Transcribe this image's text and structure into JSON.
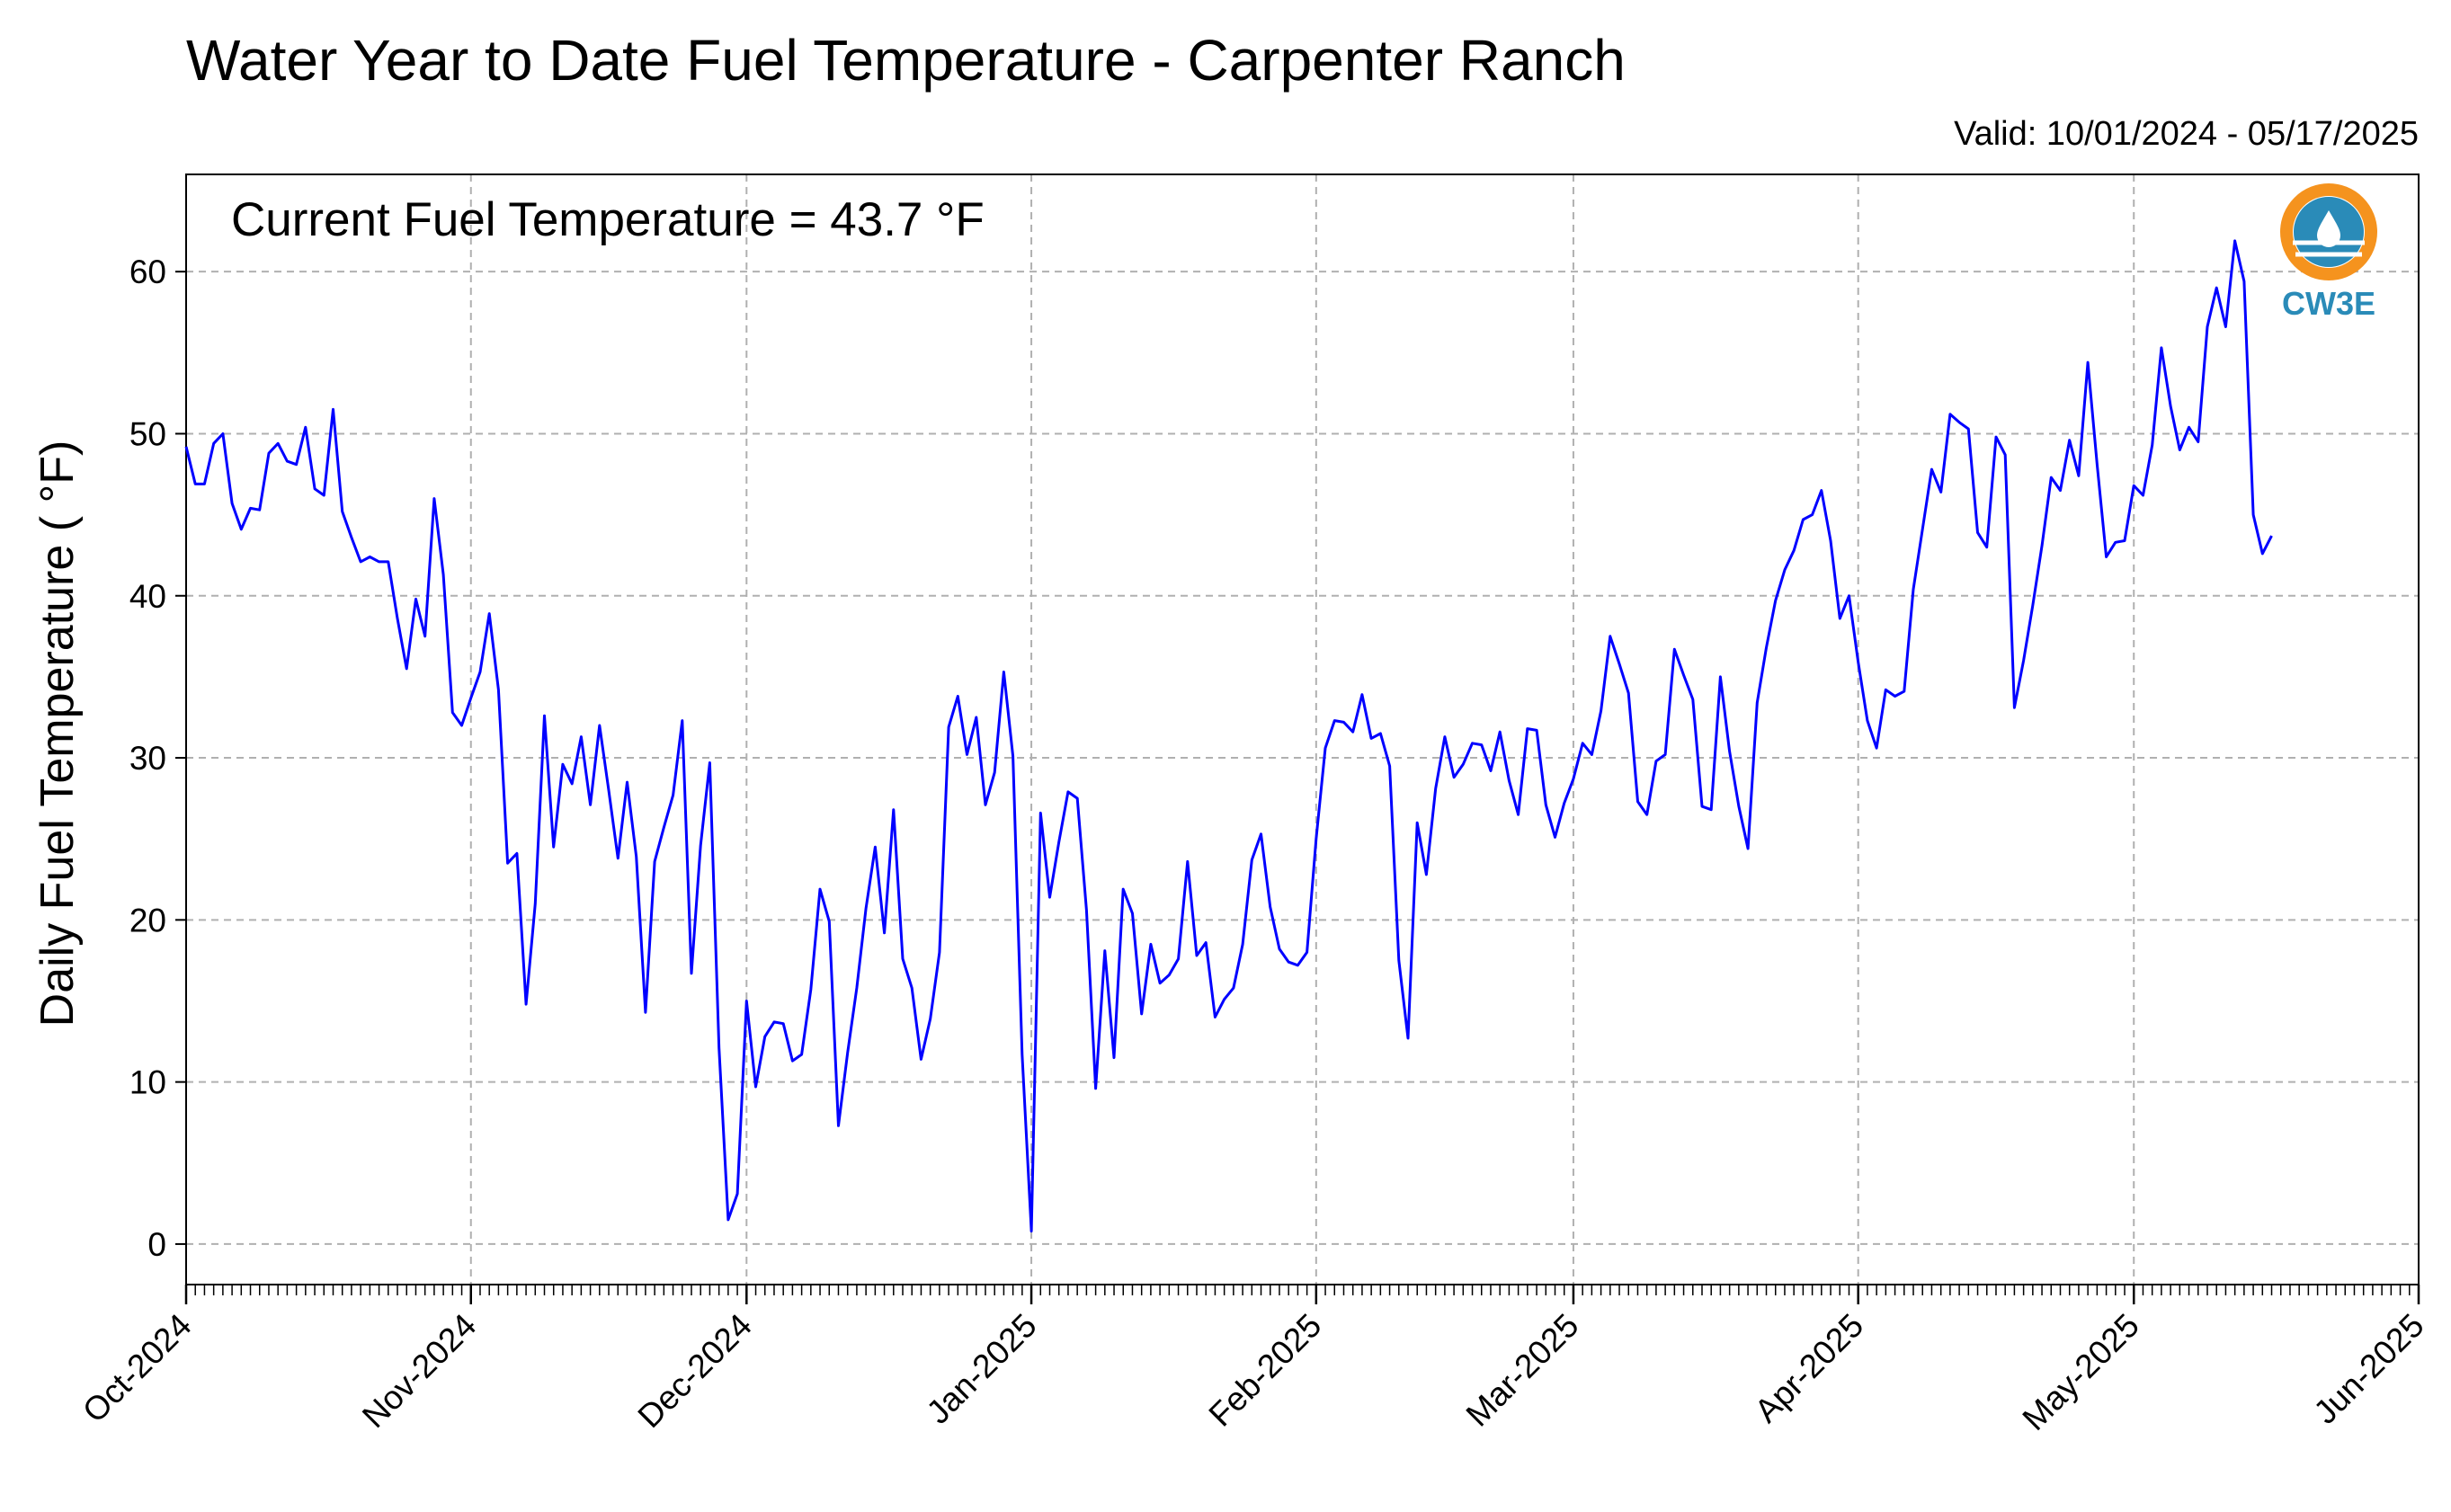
{
  "page": {
    "title": "Water Year to Date Fuel Temperature - Carpenter Ranch",
    "valid_text": "Valid: 10/01/2024 - 05/17/2025",
    "annotation": "Current Fuel Temperature = 43.7 °F",
    "logo_text": "CW3E"
  },
  "colors": {
    "line": "#0000ff",
    "grid": "#b0b0b0",
    "logo_orange": "#f5931e",
    "logo_blue": "#2a8bb8"
  },
  "chart_data": {
    "type": "line",
    "title": "Water Year to Date Fuel Temperature - Carpenter Ranch",
    "subtitle": "Valid: 10/01/2024 - 05/17/2025",
    "ylabel": "Daily Fuel Temperature ( °F)",
    "xlabel": "",
    "ylim": [
      -2.5,
      66
    ],
    "xlim": [
      "2024-10-01",
      "2025-06-01"
    ],
    "yticks": [
      0,
      10,
      20,
      30,
      40,
      50,
      60
    ],
    "ytick_labels": [
      "0",
      "10",
      "20",
      "30",
      "40",
      "50",
      "60"
    ],
    "xticks": [
      "2024-10-01",
      "2024-11-01",
      "2024-12-01",
      "2025-01-01",
      "2025-02-01",
      "2025-03-01",
      "2025-04-01",
      "2025-05-01",
      "2025-06-01"
    ],
    "xtick_labels": [
      "Oct-2024",
      "Nov-2024",
      "Dec-2024",
      "Jan-2025",
      "Feb-2025",
      "Mar-2025",
      "Apr-2025",
      "May-2025",
      "Jun-2025"
    ],
    "grid": true,
    "start_date": "2024-10-01",
    "series": [
      {
        "values": [
          49.2,
          46.9,
          46.9,
          49.4,
          50.0,
          45.7,
          44.1,
          45.4,
          45.3,
          48.8,
          49.4,
          48.3,
          48.1,
          50.4,
          46.6,
          46.2,
          51.5,
          45.2,
          43.6,
          42.1,
          42.4,
          42.1,
          42.1,
          38.6,
          35.5,
          39.8,
          37.5,
          46.0,
          41.3,
          32.8,
          32.0,
          33.7,
          35.3,
          38.9,
          34.2,
          23.5,
          24.1,
          14.8,
          21.0,
          32.6,
          24.5,
          29.6,
          28.4,
          31.3,
          27.1,
          32.0,
          28.0,
          23.8,
          28.5,
          23.9,
          14.3,
          23.6,
          25.7,
          27.7,
          32.3,
          16.7,
          24.6,
          29.7,
          12.1,
          1.5,
          3.1,
          15.0,
          9.7,
          12.8,
          13.7,
          13.6,
          11.3,
          11.7,
          15.7,
          21.9,
          19.9,
          7.3,
          11.8,
          15.8,
          20.7,
          24.5,
          19.2,
          26.8,
          17.6,
          15.8,
          11.4,
          13.9,
          18.0,
          31.9,
          33.8,
          30.2,
          32.5,
          27.1,
          29.1,
          35.3,
          30.1,
          11.7,
          0.8,
          26.6,
          21.4,
          24.8,
          27.9,
          27.5,
          20.6,
          9.6,
          18.1,
          11.5,
          21.9,
          20.4,
          14.2,
          18.5,
          16.1,
          16.6,
          17.6,
          23.6,
          17.8,
          18.6,
          14.0,
          15.1,
          15.8,
          18.5,
          23.7,
          25.3,
          20.8,
          18.2,
          17.4,
          17.2,
          18.0,
          25.0,
          30.6,
          32.3,
          32.2,
          31.6,
          33.9,
          31.2,
          31.5,
          29.5,
          17.5,
          12.7,
          26.0,
          22.8,
          28.1,
          31.3,
          28.8,
          29.6,
          30.9,
          30.8,
          29.2,
          31.6,
          28.6,
          26.5,
          31.8,
          31.7,
          27.1,
          25.1,
          27.2,
          28.7,
          30.9,
          30.2,
          32.9,
          37.5,
          35.8,
          34.0,
          27.3,
          26.5,
          29.8,
          30.2,
          36.7,
          35.1,
          33.6,
          27.0,
          26.8,
          35.0,
          30.4,
          27.0,
          24.4,
          33.4,
          36.8,
          39.7,
          41.6,
          42.8,
          44.7,
          45.0,
          46.5,
          43.4,
          38.6,
          40.0,
          35.9,
          32.3,
          30.6,
          34.2,
          33.8,
          34.1,
          40.4,
          44.1,
          47.8,
          46.4,
          51.2,
          50.7,
          50.3,
          43.9,
          43.0,
          49.8,
          48.7,
          33.1,
          36.0,
          39.4,
          43.1,
          47.3,
          46.5,
          49.6,
          47.4,
          54.4,
          48.1,
          42.4,
          43.3,
          43.4,
          46.8,
          46.2,
          49.3,
          55.3,
          51.7,
          49.0,
          50.4,
          49.5,
          56.6,
          59.0,
          56.6,
          61.9,
          59.4,
          45.0,
          42.6,
          43.7
        ]
      }
    ]
  }
}
